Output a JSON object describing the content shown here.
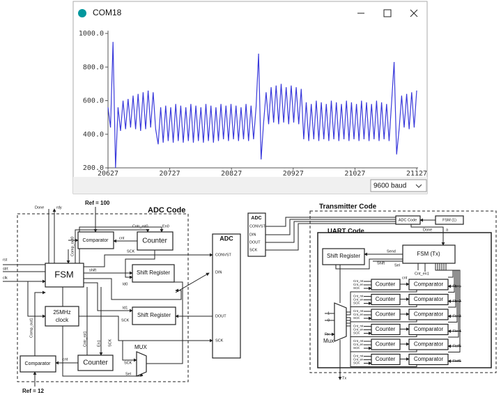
{
  "window": {
    "title": "COM18",
    "baud": "9600 baud"
  },
  "chart_data": {
    "type": "line",
    "xlim": [
      20627,
      21127
    ],
    "xticks": [
      20627,
      20727,
      20827,
      20927,
      21027,
      21127
    ],
    "ylim": [
      200,
      1000
    ],
    "yticks": [
      {
        "value": 1000,
        "label": "1000.0"
      },
      {
        "value": 800,
        "label": "800.0"
      },
      {
        "value": 600,
        "label": "600.0"
      },
      {
        "value": 400,
        "label": "400.0"
      },
      {
        "value": 200,
        "label": "200.0"
      }
    ],
    "series": [
      {
        "color": "#3a3adb",
        "values": [
          560,
          440,
          950,
          200,
          560,
          420,
          600,
          430,
          610,
          440,
          630,
          430,
          640,
          420,
          650,
          430,
          660,
          440,
          650,
          430,
          340,
          560,
          350,
          570,
          360,
          560,
          350,
          580,
          360,
          570,
          350,
          560,
          360,
          580,
          350,
          570,
          360,
          560,
          350,
          580,
          360,
          570,
          350,
          560,
          360,
          580,
          370,
          570,
          360,
          580,
          370,
          570,
          360,
          560,
          370,
          580,
          360,
          570,
          370,
          560,
          880,
          250,
          470,
          650,
          460,
          680,
          470,
          690,
          460,
          700,
          470,
          680,
          460,
          690,
          470,
          680,
          460,
          670,
          370,
          590,
          360,
          580,
          370,
          600,
          360,
          590,
          370,
          580,
          360,
          600,
          370,
          590,
          360,
          580,
          370,
          600,
          360,
          590,
          370,
          580,
          360,
          600,
          370,
          590,
          360,
          580,
          370,
          600,
          360,
          590,
          370,
          580,
          360,
          590,
          830,
          280,
          430,
          630,
          440,
          640,
          430,
          650,
          440,
          660
        ]
      }
    ]
  },
  "adc_code": {
    "title": "ADC Code",
    "ref_top": "Ref = 100",
    "ref_bottom": "Ref = 12",
    "outputs": [
      "Done",
      "rdy"
    ],
    "inputs": [
      "rst",
      "strt",
      "clk"
    ],
    "fsm": "FSM",
    "clock": [
      "25MHz",
      "clock"
    ],
    "comparator": "Comparator",
    "counter": "Counter",
    "shift_register": "Shift Register",
    "mux": "MUX",
    "signals": [
      "Cntr_rst0",
      "En0",
      "cnt",
      "Comp_out0",
      "SCK",
      "shift",
      "ld0",
      "ld1",
      "Comp_out1",
      "Cntr_rst1",
      "En1",
      "Sel"
    ]
  },
  "adc_chip": {
    "title": "ADC",
    "pins": [
      "CONVST",
      "DIN",
      "DOUT",
      "SCK"
    ]
  },
  "transmitter": {
    "title": "Transmitter Code",
    "adc_code": "ADC Code",
    "fsm1": "FSM (1)",
    "done": "Done",
    "a": "a",
    "uart": {
      "title": "UART Code",
      "shift_register": "Shift Register",
      "fsm": "FSM (Tx)",
      "counter": "Counter",
      "comparator": "Comparator",
      "mux": "Mux",
      "refs": [
        "Ref1",
        "Ref2",
        "Ref3",
        "Ref4",
        "Ref5",
        "Ref6"
      ],
      "row_signals": [
        "Cnt_rst",
        "Cnt_en",
        "SCK"
      ],
      "signals": [
        "Send",
        "Shift",
        "Sel",
        "Cnt_en1",
        "cnt",
        "1",
        "0",
        "Rx",
        "Tx"
      ]
    }
  }
}
